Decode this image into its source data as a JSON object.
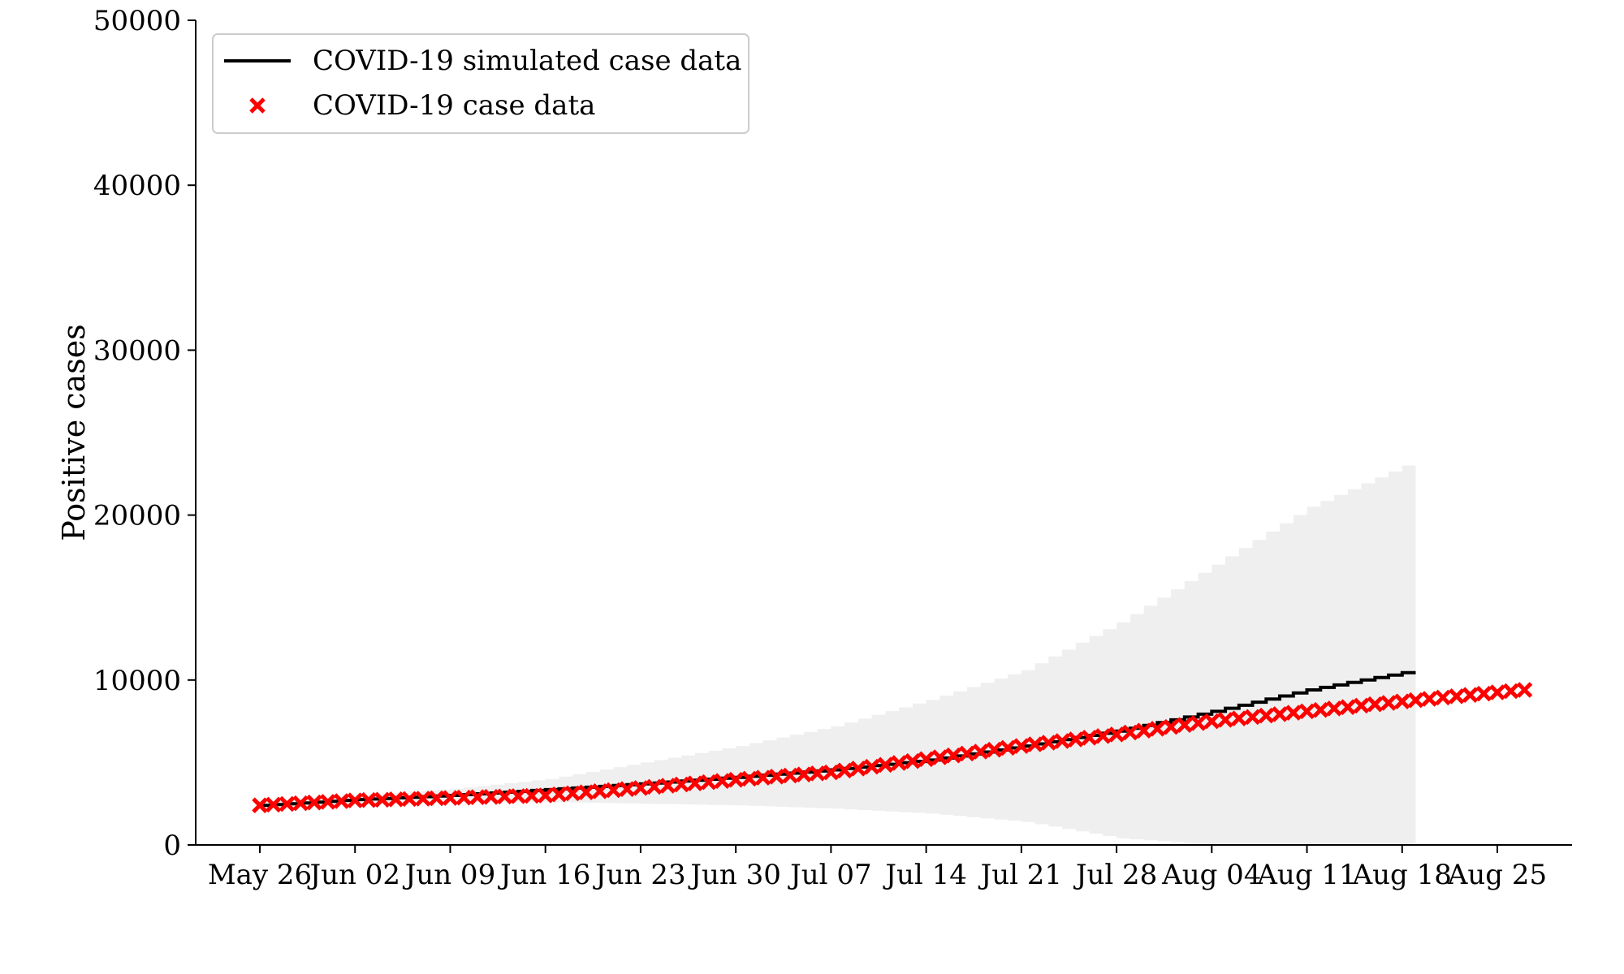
{
  "chart_data": {
    "type": "line",
    "title": "",
    "xlabel": "",
    "ylabel": "Positive cases",
    "ylim": [
      0,
      50000
    ],
    "xlim": [
      "2020-05-19",
      "2020-08-30"
    ],
    "x_ticks": [
      "May 26",
      "Jun 02",
      "Jun 09",
      "Jun 16",
      "Jun 23",
      "Jun 30",
      "Jul 07",
      "Jul 14",
      "Jul 21",
      "Jul 28",
      "Aug 04",
      "Aug 11",
      "Aug 18",
      "Aug 25"
    ],
    "y_ticks": [
      "0",
      "10000",
      "20000",
      "30000",
      "40000",
      "50000"
    ],
    "grid": false,
    "legend_position": "top-left",
    "series": [
      {
        "name": "COVID-19 simulated case data",
        "style": "step",
        "color": "#000000",
        "points": [
          [
            "2020-05-26",
            2400
          ],
          [
            "2020-06-02",
            2750
          ],
          [
            "2020-06-09",
            3000
          ],
          [
            "2020-06-16",
            3350
          ],
          [
            "2020-06-23",
            3700
          ],
          [
            "2020-06-30",
            4100
          ],
          [
            "2020-07-07",
            4550
          ],
          [
            "2020-07-14",
            5150
          ],
          [
            "2020-07-21",
            6000
          ],
          [
            "2020-07-28",
            6900
          ],
          [
            "2020-08-04",
            8100
          ],
          [
            "2020-08-11",
            9400
          ],
          [
            "2020-08-18",
            10450
          ]
        ]
      },
      {
        "name": "COVID-19 case data",
        "style": "marker-x",
        "color": "#ff0000",
        "points": [
          [
            "2020-05-26",
            2400
          ],
          [
            "2020-06-02",
            2700
          ],
          [
            "2020-06-09",
            2850
          ],
          [
            "2020-06-16",
            3000
          ],
          [
            "2020-06-23",
            3450
          ],
          [
            "2020-06-30",
            3950
          ],
          [
            "2020-07-07",
            4400
          ],
          [
            "2020-07-14",
            5200
          ],
          [
            "2020-07-21",
            6000
          ],
          [
            "2020-07-28",
            6700
          ],
          [
            "2020-08-04",
            7500
          ],
          [
            "2020-08-11",
            8100
          ],
          [
            "2020-08-18",
            8700
          ],
          [
            "2020-08-25",
            9250
          ],
          [
            "2020-08-27",
            9400
          ]
        ]
      }
    ],
    "band": {
      "color": "#efefef",
      "upper": [
        [
          "2020-05-26",
          2600
        ],
        [
          "2020-06-02",
          3000
        ],
        [
          "2020-06-09",
          3400
        ],
        [
          "2020-06-16",
          4000
        ],
        [
          "2020-06-23",
          5000
        ],
        [
          "2020-06-30",
          6000
        ],
        [
          "2020-07-07",
          7200
        ],
        [
          "2020-07-14",
          8800
        ],
        [
          "2020-07-21",
          10600
        ],
        [
          "2020-07-28",
          13500
        ],
        [
          "2020-08-04",
          17000
        ],
        [
          "2020-08-11",
          20500
        ],
        [
          "2020-08-18",
          23000
        ]
      ],
      "lower": [
        [
          "2020-05-26",
          2300
        ],
        [
          "2020-06-02",
          2500
        ],
        [
          "2020-06-09",
          2600
        ],
        [
          "2020-06-16",
          2600
        ],
        [
          "2020-06-23",
          2500
        ],
        [
          "2020-06-30",
          2400
        ],
        [
          "2020-07-07",
          2200
        ],
        [
          "2020-07-14",
          1900
        ],
        [
          "2020-07-21",
          1400
        ],
        [
          "2020-07-28",
          400
        ],
        [
          "2020-08-04",
          0
        ],
        [
          "2020-08-11",
          0
        ],
        [
          "2020-08-18",
          0
        ]
      ]
    }
  }
}
